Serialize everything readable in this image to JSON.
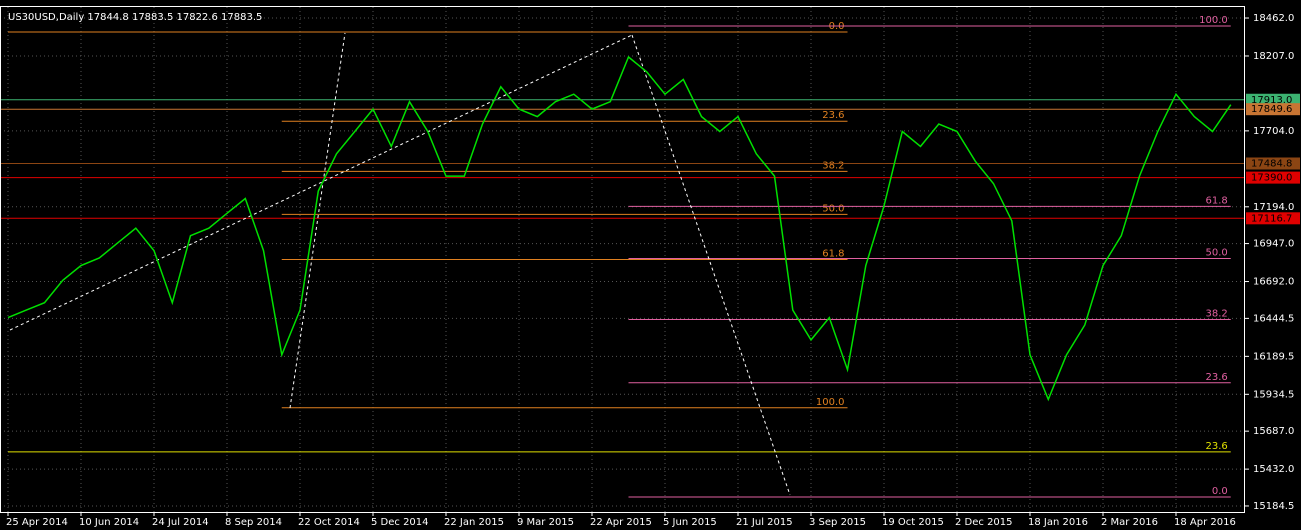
{
  "chart_data": {
    "type": "line",
    "title": "US30USD,Daily  17844.8 17883.5 17822.6 17883.5",
    "categories": [
      "25 Apr 2014",
      null,
      null,
      null,
      "10 Jun 2014",
      null,
      null,
      null,
      "24 Jul 2014",
      null,
      null,
      null,
      "8 Sep 2014",
      null,
      null,
      null,
      "22 Oct 2014",
      null,
      null,
      null,
      "5 Dec 2014",
      null,
      null,
      null,
      "22 Jan 2015",
      null,
      null,
      null,
      "9 Mar 2015",
      null,
      null,
      null,
      "22 Apr 2015",
      null,
      null,
      null,
      "5 Jun 2015",
      null,
      null,
      null,
      "21 Jul 2015",
      null,
      null,
      null,
      "3 Sep 2015",
      null,
      null,
      null,
      "19 Oct 2015",
      null,
      null,
      null,
      "2 Dec 2015",
      null,
      null,
      null,
      "18 Jan 2016",
      null,
      null,
      null,
      "2 Mar 2016",
      null,
      null,
      null,
      "18 Apr 2016",
      null,
      null,
      null
    ],
    "series": [
      {
        "color": "#00e000",
        "values": [
          16450,
          16500,
          16550,
          16700,
          16800,
          16850,
          16950,
          17050,
          16900,
          16550,
          17000,
          17050,
          17150,
          17250,
          16900,
          16200,
          16500,
          17300,
          17550,
          17700,
          17850,
          17600,
          17900,
          17700,
          17400,
          17400,
          17750,
          18000,
          17850,
          17800,
          17900,
          17950,
          17850,
          17900,
          18200,
          18100,
          17950,
          18050,
          17800,
          17700,
          17800,
          17550,
          17400,
          16500,
          16300,
          16450,
          16100,
          16800,
          17200,
          17700,
          17600,
          17750,
          17700,
          17500,
          17350,
          17100,
          16200,
          15900,
          16200,
          16400,
          16800,
          17000,
          17400,
          17700,
          17950,
          17800,
          17700,
          17880
        ]
      }
    ],
    "ylim": [
      15144,
      18536
    ],
    "yticks": [
      {
        "value": 18462,
        "label": "18462.0"
      },
      {
        "value": 18207,
        "label": "18207.0"
      },
      {
        "value": 17704,
        "label": "17704.0"
      },
      {
        "value": 17194,
        "label": "17194.0"
      },
      {
        "value": 16947,
        "label": "16947.0"
      },
      {
        "value": 16692,
        "label": "16692.0"
      },
      16444.5,
      16189.5,
      15934.5,
      {
        "value": 15687,
        "label": "15687.0"
      },
      {
        "value": 15432,
        "label": "15432.0"
      },
      15184.5
    ],
    "grid": true,
    "price_tags": [
      {
        "value": 17913,
        "label": "17913.0",
        "color": "#3cb371"
      },
      {
        "value": 17849.6,
        "label": "17849.6",
        "color": "#c87533"
      },
      {
        "value": 17484.8,
        "label": "17484.8",
        "color": "#8b4513"
      },
      {
        "value": 17390,
        "label": "17390.0",
        "color": "#e00000"
      },
      {
        "value": 17116.7,
        "label": "17116.7",
        "color": "#e00000"
      }
    ],
    "levels": [
      {
        "label": "0.0",
        "value": 18368,
        "color": "#e08020",
        "start": 0,
        "end": 46
      },
      {
        "label": "23.6",
        "value": 17769,
        "color": "#e08020",
        "start": 15,
        "end": 46
      },
      {
        "label": "38.2",
        "value": 17432,
        "color": "#e08020",
        "start": 15,
        "end": 46
      },
      {
        "label": "50.0",
        "value": 17143,
        "color": "#e08020",
        "start": 15,
        "end": 46
      },
      {
        "label": "61.8",
        "value": 16840,
        "color": "#e08020",
        "start": 15,
        "end": 46
      },
      {
        "label": "100.0",
        "value": 15844,
        "color": "#e08020",
        "start": 15,
        "end": 46
      },
      {
        "label": "100.0",
        "value": 18408,
        "color": "#e060a0",
        "start": 34,
        "end": 67
      },
      {
        "label": "61.8",
        "value": 17197,
        "color": "#e060a0",
        "start": 34,
        "end": 67
      },
      {
        "label": "50.0",
        "value": 16847,
        "color": "#e060a0",
        "start": 34,
        "end": 67
      },
      {
        "label": "38.2",
        "value": 16437,
        "color": "#e060a0",
        "start": 34,
        "end": 67
      },
      {
        "label": "23.6",
        "value": 16012,
        "color": "#e060a0",
        "start": 34,
        "end": 67
      },
      {
        "label": "0.0",
        "value": 15245,
        "color": "#e060a0",
        "start": 34,
        "end": 67
      },
      {
        "label": "23.6",
        "value": 15548,
        "color": "#e0e000",
        "start": 0,
        "end": 67
      }
    ]
  }
}
